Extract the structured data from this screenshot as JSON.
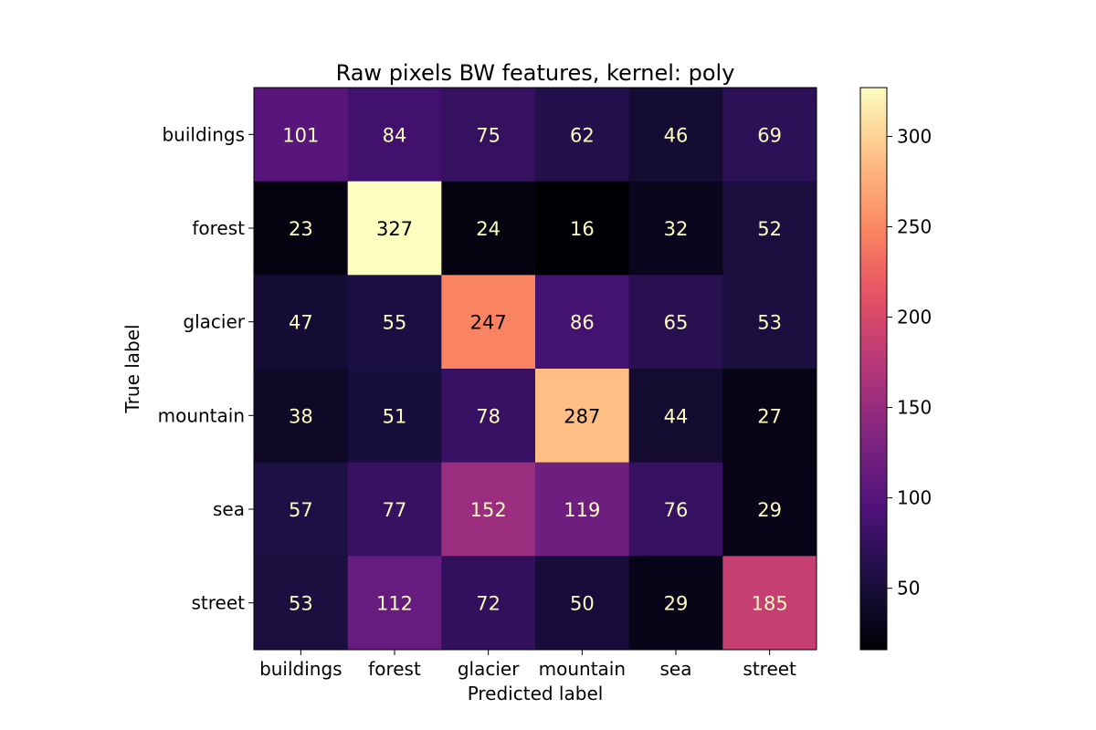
{
  "chart_data": {
    "type": "heatmap",
    "title": "Raw pixels BW features, kernel: poly",
    "xlabel": "Predicted label",
    "ylabel": "True label",
    "x_categories": [
      "buildings",
      "forest",
      "glacier",
      "mountain",
      "sea",
      "street"
    ],
    "y_categories": [
      "buildings",
      "forest",
      "glacier",
      "mountain",
      "sea",
      "street"
    ],
    "values": [
      [
        101,
        84,
        75,
        62,
        46,
        69
      ],
      [
        23,
        327,
        24,
        16,
        32,
        52
      ],
      [
        47,
        55,
        247,
        86,
        65,
        53
      ],
      [
        38,
        51,
        78,
        287,
        44,
        27
      ],
      [
        57,
        77,
        152,
        119,
        76,
        29
      ],
      [
        53,
        112,
        72,
        50,
        29,
        185
      ]
    ],
    "colormap": "magma",
    "value_range": [
      16,
      327
    ],
    "colorbar_ticks": [
      50,
      100,
      150,
      200,
      250,
      300
    ],
    "grid": false
  }
}
